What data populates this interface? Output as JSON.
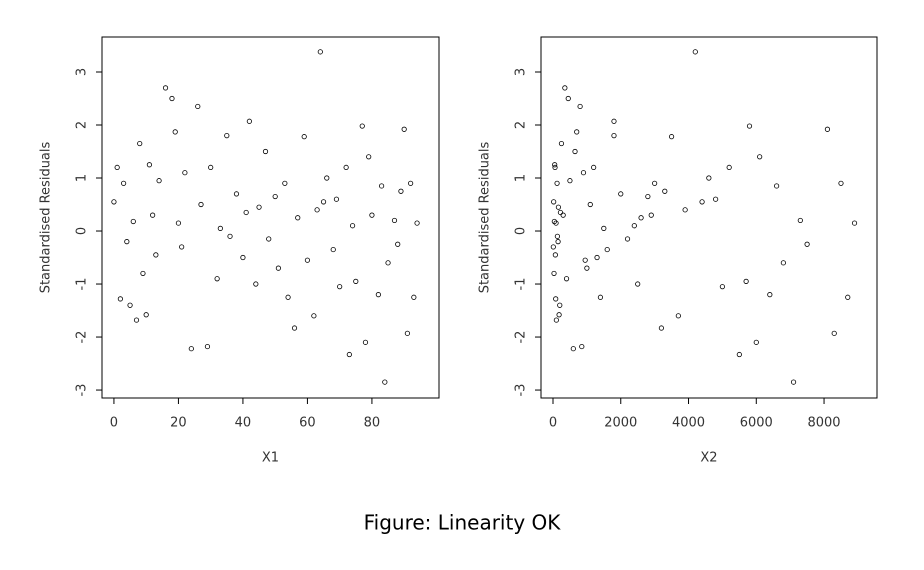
{
  "chart_data": [
    {
      "type": "scatter",
      "x_label": "X1",
      "y_label": "Standardised Residuals",
      "color": "#000000",
      "x": [
        0,
        1,
        2,
        3,
        4,
        5,
        6,
        7,
        8,
        9,
        10,
        11,
        12,
        13,
        14,
        16,
        18,
        19,
        20,
        21,
        22,
        24,
        26,
        27,
        29,
        30,
        32,
        33,
        35,
        36,
        38,
        40,
        41,
        42,
        44,
        45,
        47,
        48,
        50,
        51,
        53,
        54,
        56,
        57,
        59,
        60,
        62,
        63,
        64,
        65,
        66,
        68,
        69,
        70,
        72,
        73,
        74,
        75,
        77,
        78,
        79,
        80,
        82,
        83,
        84,
        85,
        87,
        88,
        89,
        90,
        91,
        92,
        93,
        94
      ],
      "values": [
        0.55,
        1.2,
        -1.28,
        0.9,
        -0.2,
        -1.4,
        0.18,
        -1.68,
        1.65,
        -0.8,
        -1.58,
        1.25,
        0.3,
        -0.45,
        0.95,
        2.7,
        2.5,
        1.87,
        0.15,
        -0.3,
        1.1,
        -2.22,
        2.35,
        0.5,
        -2.18,
        1.2,
        -0.9,
        0.05,
        1.8,
        -0.1,
        0.7,
        -0.5,
        0.35,
        2.07,
        -1.0,
        0.45,
        1.5,
        -0.15,
        0.65,
        -0.7,
        0.9,
        -1.25,
        -1.83,
        0.25,
        1.78,
        -0.55,
        -1.6,
        0.4,
        3.38,
        0.55,
        1.0,
        -0.35,
        0.6,
        -1.05,
        1.2,
        -2.33,
        0.1,
        -0.95,
        1.98,
        -2.1,
        1.4,
        0.3,
        -1.2,
        0.85,
        -2.85,
        -0.6,
        0.2,
        -0.25,
        0.75,
        1.92,
        -1.93,
        0.9,
        -1.25,
        0.15
      ],
      "xlim": [
        -3.7,
        100.8
      ],
      "xticks": [
        0,
        20,
        40,
        60,
        80
      ],
      "ylim": [
        -3.15,
        3.66
      ],
      "yticks": [
        -3,
        -2,
        -1,
        0,
        1,
        2,
        3
      ]
    },
    {
      "type": "scatter",
      "x_label": "X2",
      "y_label": "Standardised Residuals",
      "color": "#000000",
      "x": [
        20,
        60,
        80,
        120,
        150,
        200,
        40,
        100,
        250,
        30,
        180,
        50,
        300,
        70,
        500,
        350,
        450,
        700,
        90,
        10,
        900,
        600,
        800,
        1100,
        850,
        1200,
        400,
        1500,
        1800,
        130,
        2000,
        1300,
        220,
        1800,
        2500,
        160,
        650,
        2200,
        2800,
        1000,
        3000,
        1400,
        3200,
        2600,
        3500,
        950,
        3700,
        3900,
        4200,
        4400,
        4600,
        1600,
        4800,
        5000,
        5200,
        5500,
        2400,
        5700,
        5800,
        6000,
        6100,
        2900,
        6400,
        6600,
        7100,
        6800,
        7300,
        7500,
        3300,
        8100,
        8300,
        8500,
        8700,
        8900
      ],
      "values": [
        0.55,
        1.2,
        -1.28,
        0.9,
        -0.2,
        -1.4,
        0.18,
        -1.68,
        1.65,
        -0.8,
        -1.58,
        1.25,
        0.3,
        -0.45,
        0.95,
        2.7,
        2.5,
        1.87,
        0.15,
        -0.3,
        1.1,
        -2.22,
        2.35,
        0.5,
        -2.18,
        1.2,
        -0.9,
        0.05,
        1.8,
        -0.1,
        0.7,
        -0.5,
        0.35,
        2.07,
        -1.0,
        0.45,
        1.5,
        -0.15,
        0.65,
        -0.7,
        0.9,
        -1.25,
        -1.83,
        0.25,
        1.78,
        -0.55,
        -1.6,
        0.4,
        3.38,
        0.55,
        1.0,
        -0.35,
        0.6,
        -1.05,
        1.2,
        -2.33,
        0.1,
        -0.95,
        1.98,
        -2.1,
        1.4,
        0.3,
        -1.2,
        0.85,
        -2.85,
        -0.6,
        0.2,
        -0.25,
        0.75,
        1.92,
        -1.93,
        0.9,
        -1.25,
        0.15
      ],
      "xlim": [
        -354,
        9563
      ],
      "xticks": [
        0,
        2000,
        4000,
        6000,
        8000
      ],
      "ylim": [
        -3.15,
        3.66
      ],
      "yticks": [
        -3,
        -2,
        -1,
        0,
        1,
        2,
        3
      ]
    }
  ],
  "caption": "Figure: Linearity OK"
}
